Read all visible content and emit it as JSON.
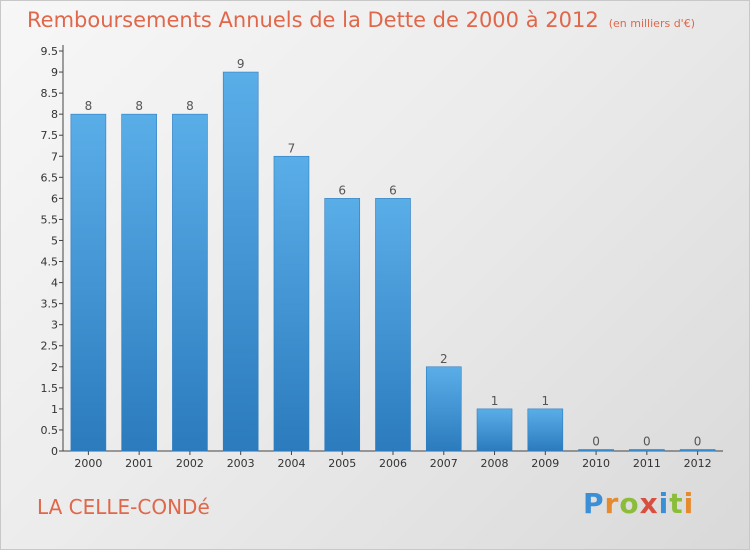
{
  "header": {
    "title": "Remboursements Annuels de la Dette de 2000 à 2012",
    "unit": "(en milliers d'€)"
  },
  "footer": {
    "commune": "LA CELLE-CONDé",
    "logo_letters": [
      "P",
      "r",
      "o",
      "x",
      "i",
      "t",
      "i"
    ]
  },
  "colors": {
    "title": "#e0674a",
    "bar_top": "#5aaee8",
    "bar_bottom": "#2b7bbd",
    "logo": [
      "#3a8fd6",
      "#e58a2e",
      "#8bbd3a",
      "#d94f3f",
      "#3a8fd6",
      "#8bbd3a",
      "#e58a2e"
    ]
  },
  "chart_data": {
    "type": "bar",
    "title": "Remboursements Annuels de la Dette de 2000 à 2012",
    "categories": [
      "2000",
      "2001",
      "2002",
      "2003",
      "2004",
      "2005",
      "2006",
      "2007",
      "2008",
      "2009",
      "2010",
      "2011",
      "2012"
    ],
    "values": [
      8,
      8,
      8,
      9,
      7,
      6,
      6,
      2,
      1,
      1,
      0,
      0,
      0
    ],
    "data_labels": [
      "8",
      "8",
      "8",
      "9",
      "7",
      "6",
      "6",
      "2",
      "1",
      "1",
      "0",
      "0",
      "0"
    ],
    "ylim": [
      0,
      9.5
    ],
    "ytick_labels": [
      "0",
      "0.5",
      "1",
      "1.5",
      "2",
      "2.5",
      "3",
      "3.5",
      "4",
      "4.5",
      "5",
      "5.5",
      "6",
      "6.5",
      "7",
      "7.5",
      "8",
      "8.5",
      "9",
      "9.5"
    ],
    "grid": false,
    "legend": "none"
  }
}
